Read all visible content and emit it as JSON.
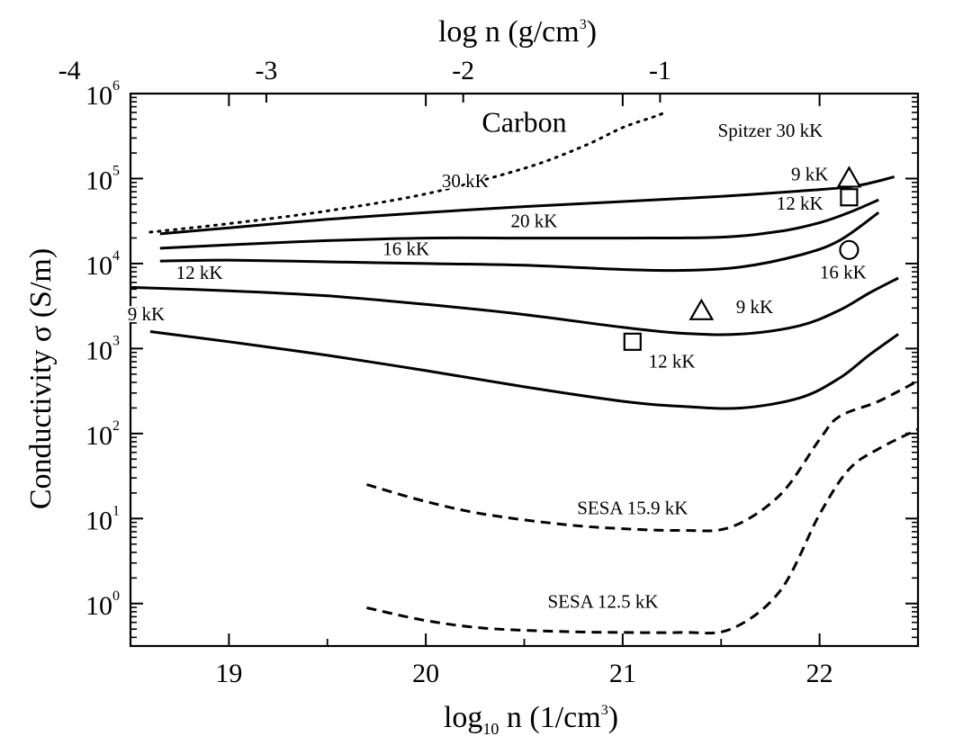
{
  "chart_data": {
    "type": "line",
    "title": "Carbon",
    "xlabel": {
      "main": "log",
      "sub": "10",
      "rest": " n (1/cm",
      "sup": "3",
      "close": ")"
    },
    "x2label": {
      "main": "log n (g/cm",
      "sup": "3",
      "close": ")"
    },
    "ylabel": "Conductivity σ (S/m)",
    "xlim": [
      18.5,
      22.5
    ],
    "ylim_log10": [
      -0.5,
      6
    ],
    "x_ticks": [
      {
        "value": 19,
        "label": "19"
      },
      {
        "value": 20,
        "label": "20"
      },
      {
        "value": 21,
        "label": "21"
      },
      {
        "value": 22,
        "label": "22"
      }
    ],
    "x2_ticks": [
      {
        "value": 18.19,
        "label": "-4"
      },
      {
        "value": 19.19,
        "label": "-3"
      },
      {
        "value": 20.19,
        "label": "-2"
      },
      {
        "value": 21.19,
        "label": "-1"
      }
    ],
    "y_ticks": [
      {
        "value": 0,
        "base": "10",
        "exp": "0"
      },
      {
        "value": 1,
        "base": "10",
        "exp": "1"
      },
      {
        "value": 2,
        "base": "10",
        "exp": "2"
      },
      {
        "value": 3,
        "base": "10",
        "exp": "3"
      },
      {
        "value": 4,
        "base": "10",
        "exp": "4"
      },
      {
        "value": 5,
        "base": "10",
        "exp": "5"
      },
      {
        "value": 6,
        "base": "10",
        "exp": "6"
      }
    ],
    "series": [
      {
        "name": "Spitzer 30 kK",
        "style": "dotted",
        "points": [
          [
            18.6,
            4.37
          ],
          [
            19.0,
            4.47
          ],
          [
            19.5,
            4.62
          ],
          [
            20.0,
            4.82
          ],
          [
            20.5,
            5.12
          ],
          [
            20.8,
            5.38
          ],
          [
            21.0,
            5.6
          ],
          [
            21.15,
            5.72
          ],
          [
            21.22,
            5.78
          ]
        ]
      },
      {
        "name": "30 kK",
        "style": "solid",
        "points": [
          [
            18.65,
            4.35
          ],
          [
            19.0,
            4.42
          ],
          [
            19.5,
            4.52
          ],
          [
            20.0,
            4.6
          ],
          [
            20.5,
            4.67
          ],
          [
            21.0,
            4.73
          ],
          [
            21.5,
            4.79
          ],
          [
            22.0,
            4.87
          ],
          [
            22.2,
            4.92
          ],
          [
            22.38,
            5.02
          ]
        ]
      },
      {
        "name": "20 kK",
        "style": "solid",
        "points": [
          [
            18.65,
            4.18
          ],
          [
            19.0,
            4.22
          ],
          [
            19.5,
            4.27
          ],
          [
            20.0,
            4.3
          ],
          [
            20.5,
            4.3
          ],
          [
            21.0,
            4.3
          ],
          [
            21.5,
            4.31
          ],
          [
            21.8,
            4.38
          ],
          [
            22.0,
            4.48
          ],
          [
            22.15,
            4.6
          ],
          [
            22.3,
            4.75
          ]
        ]
      },
      {
        "name": "16 kK",
        "style": "solid",
        "points": [
          [
            18.65,
            4.03
          ],
          [
            19.0,
            4.04
          ],
          [
            19.5,
            4.02
          ],
          [
            20.0,
            4.0
          ],
          [
            20.5,
            3.98
          ],
          [
            21.0,
            3.93
          ],
          [
            21.3,
            3.92
          ],
          [
            21.6,
            3.96
          ],
          [
            21.9,
            4.1
          ],
          [
            22.1,
            4.27
          ],
          [
            22.3,
            4.6
          ]
        ]
      },
      {
        "name": "12 kK",
        "style": "solid",
        "points": [
          [
            18.5,
            3.72
          ],
          [
            19.0,
            3.68
          ],
          [
            19.5,
            3.62
          ],
          [
            20.0,
            3.52
          ],
          [
            20.5,
            3.4
          ],
          [
            21.0,
            3.25
          ],
          [
            21.3,
            3.18
          ],
          [
            21.6,
            3.17
          ],
          [
            21.9,
            3.27
          ],
          [
            22.1,
            3.45
          ],
          [
            22.25,
            3.65
          ],
          [
            22.4,
            3.83
          ]
        ]
      },
      {
        "name": "9 kK",
        "style": "solid",
        "points": [
          [
            18.6,
            3.2
          ],
          [
            19.0,
            3.08
          ],
          [
            19.5,
            2.92
          ],
          [
            20.0,
            2.74
          ],
          [
            20.5,
            2.55
          ],
          [
            21.0,
            2.38
          ],
          [
            21.3,
            2.32
          ],
          [
            21.6,
            2.3
          ],
          [
            21.9,
            2.42
          ],
          [
            22.1,
            2.65
          ],
          [
            22.25,
            2.92
          ],
          [
            22.4,
            3.17
          ]
        ]
      },
      {
        "name": "SESA 15.9 kK",
        "style": "dashed",
        "points": [
          [
            19.7,
            1.4
          ],
          [
            20.0,
            1.2
          ],
          [
            20.3,
            1.05
          ],
          [
            20.7,
            0.93
          ],
          [
            21.0,
            0.88
          ],
          [
            21.3,
            0.86
          ],
          [
            21.55,
            0.9
          ],
          [
            21.8,
            1.28
          ],
          [
            22.0,
            1.93
          ],
          [
            22.1,
            2.2
          ],
          [
            22.3,
            2.38
          ],
          [
            22.5,
            2.62
          ]
        ]
      },
      {
        "name": "SESA 12.5 kK",
        "style": "dashed",
        "points": [
          [
            19.7,
            -0.05
          ],
          [
            20.0,
            -0.2
          ],
          [
            20.3,
            -0.29
          ],
          [
            20.7,
            -0.33
          ],
          [
            21.0,
            -0.34
          ],
          [
            21.3,
            -0.34
          ],
          [
            21.55,
            -0.3
          ],
          [
            21.8,
            0.15
          ],
          [
            22.0,
            1.05
          ],
          [
            22.15,
            1.58
          ],
          [
            22.3,
            1.82
          ],
          [
            22.5,
            2.05
          ]
        ]
      }
    ],
    "curve_labels": [
      {
        "text": "Spitzer 30 kK",
        "x": 21.75,
        "y": 5.49
      },
      {
        "text": "30 kK",
        "x": 20.2,
        "y": 4.9
      },
      {
        "text": "20 kK",
        "x": 20.55,
        "y": 4.43
      },
      {
        "text": "16 kK",
        "x": 19.9,
        "y": 4.1
      },
      {
        "text": "12 kK",
        "x": 18.85,
        "y": 3.82
      },
      {
        "text": "9 kK",
        "x": 18.58,
        "y": 3.33
      },
      {
        "text": "SESA 15.9 kK",
        "x": 21.05,
        "y": 1.05
      },
      {
        "text": "SESA 12.5 kK",
        "x": 20.9,
        "y": -0.05
      }
    ],
    "markers": [
      {
        "shape": "triangle",
        "x": 22.15,
        "y": 5.0,
        "label": "9 kK",
        "lx": 21.95,
        "ly": 5.05
      },
      {
        "shape": "square",
        "x": 22.15,
        "y": 4.78,
        "label": "12 kK",
        "lx": 21.9,
        "ly": 4.71
      },
      {
        "shape": "circle",
        "x": 22.15,
        "y": 4.16,
        "label": "16 kK",
        "lx": 22.12,
        "ly": 3.9
      },
      {
        "shape": "triangle",
        "x": 21.4,
        "y": 3.44,
        "label": "9 kK",
        "lx": 21.67,
        "ly": 3.49
      },
      {
        "shape": "square",
        "x": 21.05,
        "y": 3.08,
        "label": "12 kK",
        "lx": 21.25,
        "ly": 2.85
      }
    ],
    "title_pos": {
      "x": 20.5,
      "y": 5.55
    }
  }
}
